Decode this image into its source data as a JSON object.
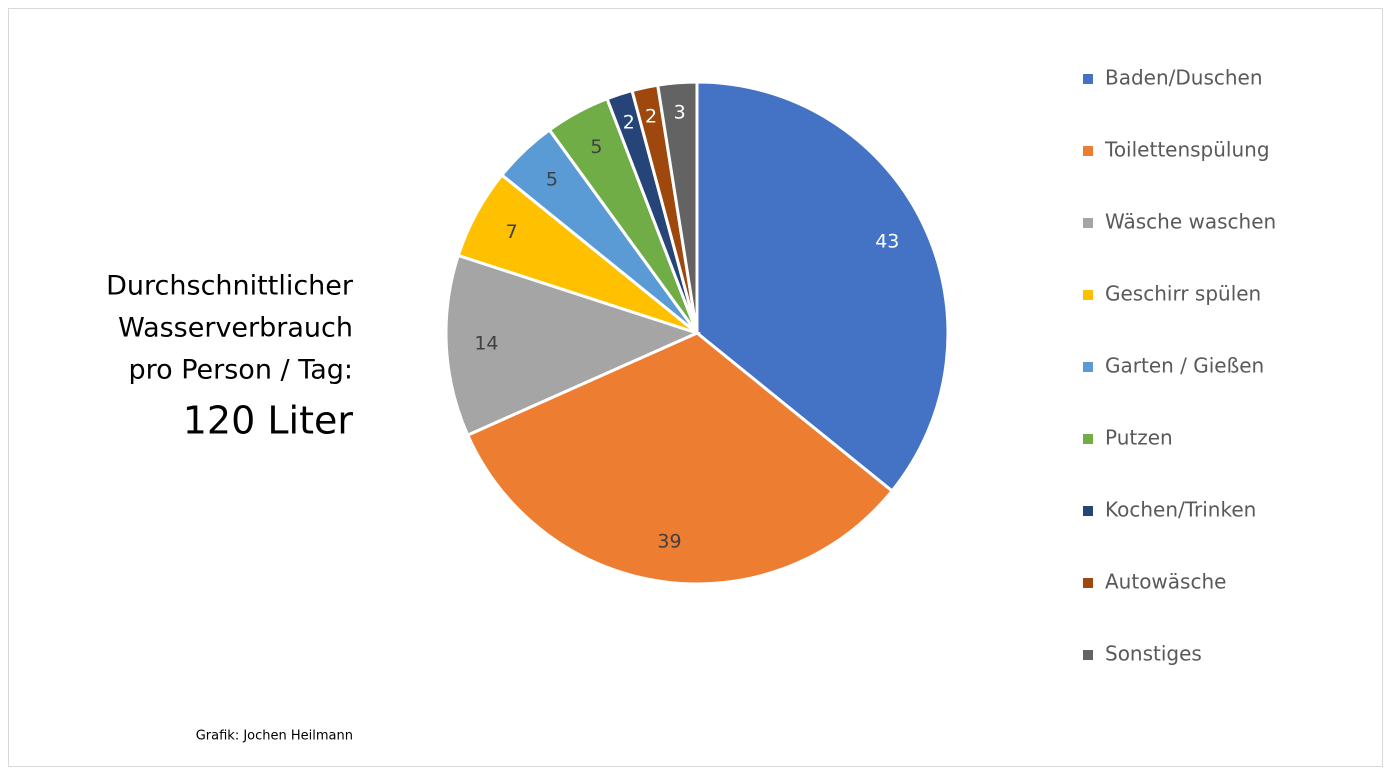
{
  "chart_data": {
    "type": "pie",
    "subtitle": [
      "Durchschnittlicher",
      "Wasserverbrauch",
      "pro Person / Tag:"
    ],
    "total_label": "120 Liter",
    "source": "Grafik: Jochen Heilmann",
    "categories": [
      "Baden/Duschen",
      "Toilettenspülung",
      "Wäsche waschen",
      "Geschirr spülen",
      "Garten / Gießen",
      "Putzen",
      "Kochen/Trinken",
      "Autowäsche",
      "Sonstiges"
    ],
    "values": [
      43,
      39,
      14,
      7,
      5,
      5,
      2,
      2,
      3
    ],
    "colors": [
      "#4472c4",
      "#ed7d31",
      "#a5a5a5",
      "#ffc000",
      "#5b9bd5",
      "#70ad47",
      "#264478",
      "#9e480e",
      "#636363"
    ],
    "legend": "right"
  }
}
